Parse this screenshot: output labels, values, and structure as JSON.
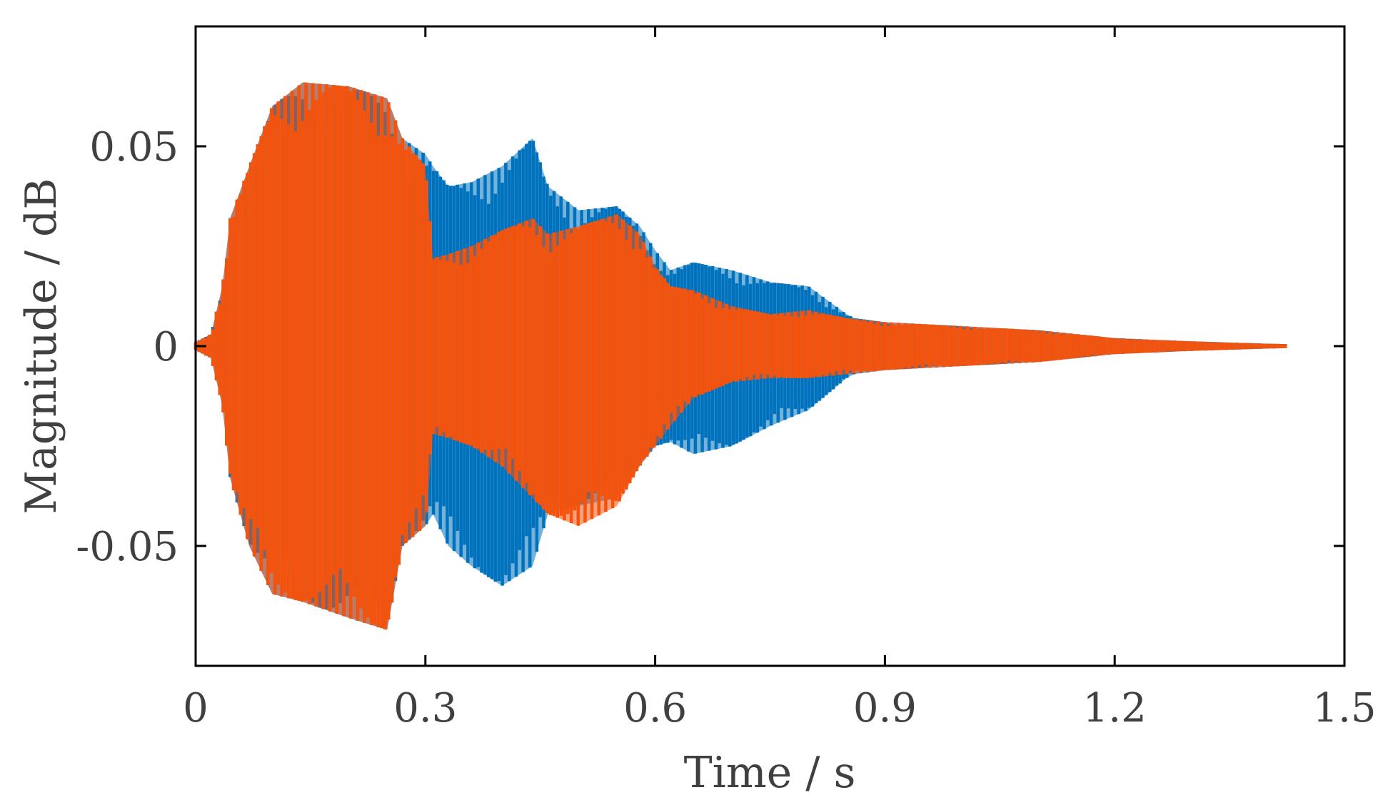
{
  "chart_data": {
    "type": "area",
    "title": "",
    "xlabel": "Time / s",
    "ylabel": "Magnitude / dB",
    "xlim": [
      0,
      1.5
    ],
    "ylim": [
      -0.08,
      0.08
    ],
    "xticks": [
      0,
      0.3,
      0.6,
      0.9,
      1.2,
      1.5
    ],
    "xtick_labels": [
      "0",
      "0.3",
      "0.6",
      "0.9",
      "1.2",
      "1.5"
    ],
    "yticks": [
      -0.05,
      0,
      0.05
    ],
    "ytick_labels": [
      "-0.05",
      "0",
      "0.05"
    ],
    "grid": false,
    "legend": "none",
    "series": [
      {
        "color": "#0072BD",
        "envelope": {
          "x": [
            0,
            0.02,
            0.035,
            0.045,
            0.07,
            0.1,
            0.14,
            0.2,
            0.25,
            0.27,
            0.3,
            0.31,
            0.33,
            0.36,
            0.4,
            0.44,
            0.46,
            0.5,
            0.55,
            0.58,
            0.6,
            0.62,
            0.65,
            0.7,
            0.75,
            0.8,
            0.85,
            0.86,
            0.9,
            1.0,
            1.1,
            1.2,
            1.3,
            1.4,
            1.425
          ],
          "upper": [
            0.001,
            0.003,
            0.015,
            0.032,
            0.045,
            0.06,
            0.066,
            0.065,
            0.062,
            0.052,
            0.048,
            0.045,
            0.04,
            0.041,
            0.045,
            0.052,
            0.04,
            0.034,
            0.035,
            0.03,
            0.024,
            0.019,
            0.021,
            0.019,
            0.016,
            0.015,
            0.008,
            0.007,
            0.006,
            0.005,
            0.004,
            0.002,
            0.0012,
            0.0006,
            0.0005
          ],
          "lower": [
            -0.001,
            -0.003,
            -0.015,
            -0.033,
            -0.05,
            -0.062,
            -0.064,
            -0.068,
            -0.071,
            -0.05,
            -0.045,
            -0.042,
            -0.05,
            -0.055,
            -0.06,
            -0.055,
            -0.042,
            -0.04,
            -0.038,
            -0.03,
            -0.025,
            -0.024,
            -0.027,
            -0.025,
            -0.02,
            -0.016,
            -0.008,
            -0.007,
            -0.006,
            -0.005,
            -0.004,
            -0.002,
            -0.0012,
            -0.0006,
            -0.0005
          ]
        }
      },
      {
        "color": "#F5520C",
        "envelope": {
          "x": [
            0,
            0.02,
            0.035,
            0.045,
            0.07,
            0.1,
            0.14,
            0.2,
            0.25,
            0.27,
            0.3,
            0.31,
            0.33,
            0.36,
            0.4,
            0.44,
            0.46,
            0.5,
            0.55,
            0.58,
            0.6,
            0.62,
            0.65,
            0.7,
            0.75,
            0.8,
            0.85,
            0.9,
            1.0,
            1.1,
            1.2,
            1.3,
            1.4,
            1.425
          ],
          "upper": [
            0.001,
            0.003,
            0.015,
            0.032,
            0.045,
            0.06,
            0.066,
            0.065,
            0.062,
            0.052,
            0.045,
            0.022,
            0.023,
            0.025,
            0.029,
            0.032,
            0.028,
            0.03,
            0.033,
            0.028,
            0.02,
            0.015,
            0.014,
            0.01,
            0.008,
            0.009,
            0.007,
            0.006,
            0.005,
            0.004,
            0.002,
            0.0012,
            0.0006,
            0.0005
          ],
          "lower": [
            -0.001,
            -0.003,
            -0.015,
            -0.033,
            -0.05,
            -0.062,
            -0.064,
            -0.068,
            -0.071,
            -0.05,
            -0.045,
            -0.022,
            -0.023,
            -0.025,
            -0.03,
            -0.038,
            -0.042,
            -0.045,
            -0.04,
            -0.03,
            -0.025,
            -0.02,
            -0.013,
            -0.009,
            -0.008,
            -0.008,
            -0.007,
            -0.006,
            -0.005,
            -0.004,
            -0.002,
            -0.0012,
            -0.0006,
            -0.0005
          ]
        }
      }
    ]
  }
}
